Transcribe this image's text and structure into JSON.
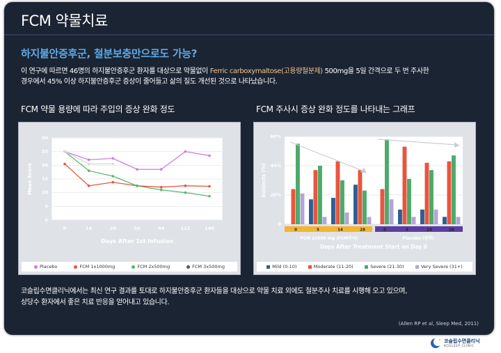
{
  "header": {
    "title": "FCM 약물치료",
    "subtitle": "하지불안증후군, 철분보충만으로도 가능?"
  },
  "intro": {
    "part1": "이 연구에 따르면 46명의 하지불안증후군 환자를 대상으로 약물없이 ",
    "highlight": "Ferric carboxymaltose(고용량철분제)",
    "part2": " 500mg을 5일 간격으로 두 번 주사한",
    "line2": "경우에서 45% 이상 하지불안증후군 증상이 줄어들고 삶의 질도 개선된 것으로 나타났습니다."
  },
  "left_chart_heading": "FCM 약물 용량에 따라 주입의 증상 완화 정도",
  "right_chart_heading": "FCM 주사시 증상 완화 정도를 나타내는 그래프",
  "colors": {
    "slide_bg": "#1b2433",
    "accent": "#5fa9e6",
    "highlight": "#f0c48a",
    "placebo": "#cf7be0",
    "fcm1x1000": "#e8553e",
    "fcm2x500": "#55b86a",
    "fcm3x500": "#d9d9d9",
    "mild": "#2f5e92",
    "moderate": "#e8553e",
    "severe": "#4caa6a",
    "very_severe": "#b5a4d6"
  },
  "chart_data": [
    {
      "type": "line",
      "x": [
        0,
        14,
        28,
        56,
        84,
        112,
        140
      ],
      "x_tick_labels": [
        "0",
        "14",
        "28",
        "56",
        "84",
        "112",
        "140"
      ],
      "xlabel": "Days After 1st Infusion",
      "ylabel": "Mean Score",
      "ylim": [
        0,
        30
      ],
      "y_ticks": [
        0,
        5,
        10,
        15,
        20,
        25,
        30
      ],
      "grid": true,
      "legend_position": "bottom",
      "series": [
        {
          "name": "Placebo",
          "values": [
            25,
            22,
            22.5,
            18.5,
            18.5,
            25,
            23.5
          ]
        },
        {
          "name": "FCM 1x1000mg",
          "values": [
            20.5,
            12.5,
            13.8,
            12.5,
            12,
            12.5,
            12.3
          ]
        },
        {
          "name": "FCM 2x500mg",
          "values": [
            25,
            18,
            16,
            12.5,
            11,
            10,
            8.7
          ]
        },
        {
          "name": "FCM 3x500mg",
          "values": [
            25,
            20.5,
            20.5,
            null,
            null,
            null,
            null
          ]
        }
      ]
    },
    {
      "type": "bar",
      "ylabel": "Subjects (%)",
      "xlabel": "Days After Treatment Start on Day 0",
      "y_tick_labels": [
        "0",
        "20%",
        "40%",
        "60%"
      ],
      "ylim": [
        0,
        60
      ],
      "categories": [
        "0",
        "5",
        "14",
        "28",
        "0",
        "5",
        "14",
        "28"
      ],
      "groups": [
        "FCM 2x500 mg (FCM주사)",
        "Placebo (위약)"
      ],
      "legend_position": "bottom",
      "series": [
        {
          "name": "Mild (0-10)",
          "values": [
            0,
            17,
            18,
            27,
            0,
            10,
            10,
            5
          ]
        },
        {
          "name": "Moderate (11-20)",
          "values": [
            24,
            37,
            43,
            37,
            24,
            53,
            42,
            43
          ]
        },
        {
          "name": "Severe (21-30)",
          "values": [
            55,
            40,
            30,
            23,
            58,
            31,
            37,
            47
          ]
        },
        {
          "name": "Very Severe (31+)",
          "values": [
            21,
            5,
            8,
            5,
            17,
            5,
            10,
            5
          ]
        }
      ]
    }
  ],
  "left_legend": {
    "placebo": "Placebo",
    "fcm1x1000": "FCM 1x1000mg",
    "fcm2x500": "FCM 2x500mg",
    "fcm3x500": "FCM 3x500mg"
  },
  "right_legend": {
    "mild": "Mild (0-10)",
    "moderate": "Moderate (11-20)",
    "severe": "Severe (21-30)",
    "very_severe": "Very Severe (31+)"
  },
  "footer": {
    "line1": "코슬립수면클리닉에서는 최신 연구 결과를 토대로 하지불안증후군 환자들을 대상으로 약물 치료 외에도 철분주사 치료를 시행해 오고 있으며,",
    "line2": "상당수 환자에서 좋은 치료 반응을 얻어내고 있습니다.",
    "citation": "(Allen RP et al, Sleep Med, 2011)"
  },
  "logo": {
    "name": "코슬립수면클리닉",
    "sub": "KOSLEEP CLINIC"
  }
}
